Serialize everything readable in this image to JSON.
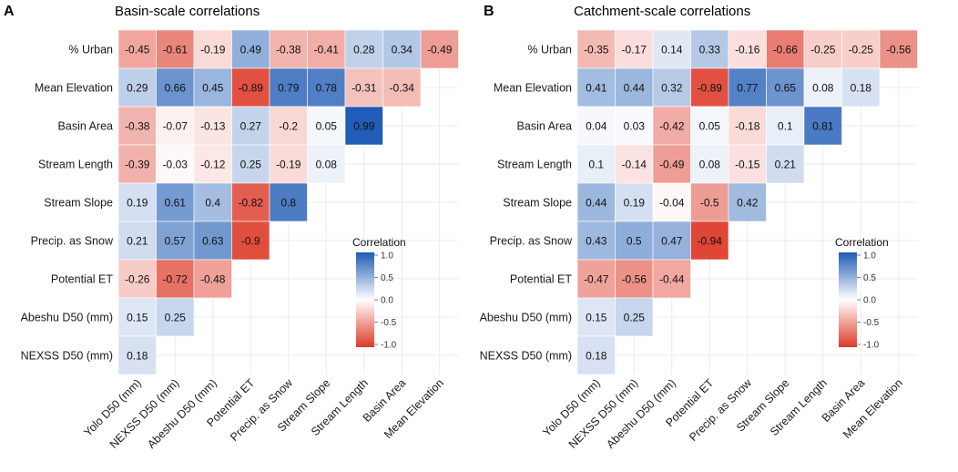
{
  "chart_data": [
    {
      "type": "heatmap",
      "panel": "A",
      "title": "Basin-scale correlations",
      "rows": [
        "% Urban",
        "Mean Elevation",
        "Basin Area",
        "Stream Length",
        "Stream Slope",
        "Precip. as Snow",
        "Potential ET",
        "Abeshu D50 (mm)",
        "NEXSS D50 (mm)"
      ],
      "columns": [
        "Yolo D50 (mm)",
        "NEXSS D50 (mm)",
        "Abeshu D50 (mm)",
        "Potential ET",
        "Precip. as Snow",
        "Stream Slope",
        "Stream Length",
        "Basin Area",
        "Mean Elevation"
      ],
      "values": [
        [
          -0.45,
          -0.61,
          -0.19,
          0.49,
          -0.38,
          -0.41,
          0.28,
          0.34,
          -0.49
        ],
        [
          0.29,
          0.66,
          0.45,
          -0.89,
          0.79,
          0.78,
          -0.31,
          -0.34
        ],
        [
          -0.38,
          -0.07,
          -0.13,
          0.27,
          -0.2,
          0.05,
          0.99
        ],
        [
          -0.39,
          -0.03,
          -0.12,
          0.25,
          -0.19,
          0.08
        ],
        [
          0.19,
          0.61,
          0.4,
          -0.82,
          0.8
        ],
        [
          0.21,
          0.57,
          0.63,
          -0.9
        ],
        [
          -0.26,
          -0.72,
          -0.48
        ],
        [
          0.15,
          0.25
        ],
        [
          0.18
        ]
      ],
      "color_scale": {
        "low": "#dd3a29",
        "mid": "#ffffff",
        "high": "#1f5bb5",
        "limits": [
          -1,
          1
        ]
      },
      "legend": {
        "title": "Correlation",
        "ticks": [
          "1.0",
          "0.5",
          "0.0",
          "-0.5",
          "-1.0"
        ]
      }
    },
    {
      "type": "heatmap",
      "panel": "B",
      "title": "Catchment-scale correlations",
      "rows": [
        "% Urban",
        "Mean Elevation",
        "Basin Area",
        "Stream Length",
        "Stream Slope",
        "Precip. as Snow",
        "Potential ET",
        "Abeshu D50 (mm)",
        "NEXSS D50 (mm)"
      ],
      "columns": [
        "Yolo D50 (mm)",
        "NEXSS D50 (mm)",
        "Abeshu D50 (mm)",
        "Potential ET",
        "Precip. as Snow",
        "Stream Slope",
        "Stream Length",
        "Basin Area",
        "Mean Elevation"
      ],
      "values": [
        [
          -0.35,
          -0.17,
          0.14,
          0.33,
          -0.16,
          -0.66,
          -0.25,
          -0.25,
          -0.56
        ],
        [
          0.41,
          0.44,
          0.32,
          -0.89,
          0.77,
          0.65,
          0.08,
          0.18
        ],
        [
          0.04,
          0.03,
          -0.42,
          0.05,
          -0.18,
          0.1,
          0.81
        ],
        [
          0.1,
          -0.14,
          -0.49,
          0.08,
          -0.15,
          0.21
        ],
        [
          0.44,
          0.19,
          -0.04,
          -0.5,
          0.42
        ],
        [
          0.43,
          0.5,
          0.47,
          -0.94
        ],
        [
          -0.47,
          -0.56,
          -0.44
        ],
        [
          0.15,
          0.25
        ],
        [
          0.18
        ]
      ],
      "color_scale": {
        "low": "#dd3a29",
        "mid": "#ffffff",
        "high": "#1f5bb5",
        "limits": [
          -1,
          1
        ]
      },
      "legend": {
        "title": "Correlation",
        "ticks": [
          "1.0",
          "0.5",
          "0.0",
          "-0.5",
          "-1.0"
        ]
      }
    }
  ]
}
